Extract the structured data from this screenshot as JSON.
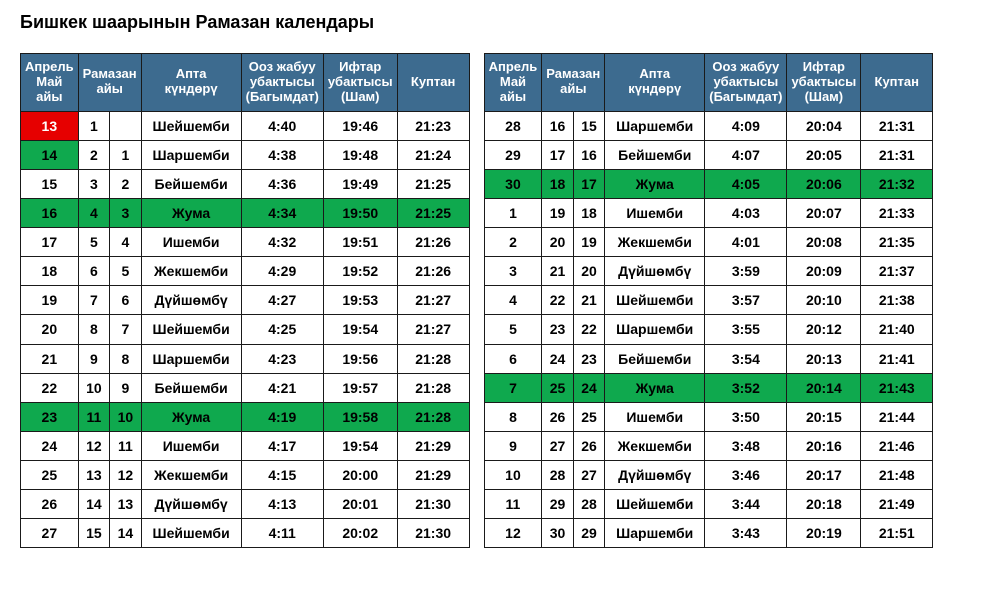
{
  "title": "Бишкек шаарынын Рамазан календары",
  "headers": {
    "date": "Апрель\nМай\nайы",
    "ram": "Рамазан\nайы",
    "weekday": "Апта\nкүндөрү",
    "suhur": "Ооз жабуу\nубактысы\n(Багымдат)",
    "iftar": "Ифтар\nубактысы\n(Шам)",
    "kuptan": "Куптан"
  },
  "colors": {
    "header_bg": "#3d6b8f",
    "header_fg": "#ffffff",
    "border": "#1a1a1a",
    "red": "#e60000",
    "green": "#0fa94e",
    "text": "#000000"
  },
  "left": [
    {
      "date": "13",
      "r1": "1",
      "r2": "",
      "day": "Шейшемби",
      "suhur": "4:40",
      "iftar": "19:46",
      "kuptan": "21:23",
      "style": "red"
    },
    {
      "date": "14",
      "r1": "2",
      "r2": "1",
      "day": "Шаршемби",
      "suhur": "4:38",
      "iftar": "19:48",
      "kuptan": "21:24",
      "style": "green-date"
    },
    {
      "date": "15",
      "r1": "3",
      "r2": "2",
      "day": "Бейшемби",
      "suhur": "4:36",
      "iftar": "19:49",
      "kuptan": "21:25",
      "style": ""
    },
    {
      "date": "16",
      "r1": "4",
      "r2": "3",
      "day": "Жума",
      "suhur": "4:34",
      "iftar": "19:50",
      "kuptan": "21:25",
      "style": "green"
    },
    {
      "date": "17",
      "r1": "5",
      "r2": "4",
      "day": "Ишемби",
      "suhur": "4:32",
      "iftar": "19:51",
      "kuptan": "21:26",
      "style": ""
    },
    {
      "date": "18",
      "r1": "6",
      "r2": "5",
      "day": "Жекшемби",
      "suhur": "4:29",
      "iftar": "19:52",
      "kuptan": "21:26",
      "style": ""
    },
    {
      "date": "19",
      "r1": "7",
      "r2": "6",
      "day": "Дүйшөмбү",
      "suhur": "4:27",
      "iftar": "19:53",
      "kuptan": "21:27",
      "style": ""
    },
    {
      "date": "20",
      "r1": "8",
      "r2": "7",
      "day": "Шейшемби",
      "suhur": "4:25",
      "iftar": "19:54",
      "kuptan": "21:27",
      "style": ""
    },
    {
      "date": "21",
      "r1": "9",
      "r2": "8",
      "day": "Шаршемби",
      "suhur": "4:23",
      "iftar": "19:56",
      "kuptan": "21:28",
      "style": ""
    },
    {
      "date": "22",
      "r1": "10",
      "r2": "9",
      "day": "Бейшемби",
      "suhur": "4:21",
      "iftar": "19:57",
      "kuptan": "21:28",
      "style": ""
    },
    {
      "date": "23",
      "r1": "11",
      "r2": "10",
      "day": "Жума",
      "suhur": "4:19",
      "iftar": "19:58",
      "kuptan": "21:28",
      "style": "green"
    },
    {
      "date": "24",
      "r1": "12",
      "r2": "11",
      "day": "Ишемби",
      "suhur": "4:17",
      "iftar": "19:54",
      "kuptan": "21:29",
      "style": ""
    },
    {
      "date": "25",
      "r1": "13",
      "r2": "12",
      "day": "Жекшемби",
      "suhur": "4:15",
      "iftar": "20:00",
      "kuptan": "21:29",
      "style": ""
    },
    {
      "date": "26",
      "r1": "14",
      "r2": "13",
      "day": "Дүйшөмбү",
      "suhur": "4:13",
      "iftar": "20:01",
      "kuptan": "21:30",
      "style": ""
    },
    {
      "date": "27",
      "r1": "15",
      "r2": "14",
      "day": "Шейшемби",
      "suhur": "4:11",
      "iftar": "20:02",
      "kuptan": "21:30",
      "style": ""
    }
  ],
  "right": [
    {
      "date": "28",
      "r1": "16",
      "r2": "15",
      "day": "Шаршемби",
      "suhur": "4:09",
      "iftar": "20:04",
      "kuptan": "21:31",
      "style": ""
    },
    {
      "date": "29",
      "r1": "17",
      "r2": "16",
      "day": "Бейшемби",
      "suhur": "4:07",
      "iftar": "20:05",
      "kuptan": "21:31",
      "style": ""
    },
    {
      "date": "30",
      "r1": "18",
      "r2": "17",
      "day": "Жума",
      "suhur": "4:05",
      "iftar": "20:06",
      "kuptan": "21:32",
      "style": "green"
    },
    {
      "date": "1",
      "r1": "19",
      "r2": "18",
      "day": "Ишемби",
      "suhur": "4:03",
      "iftar": "20:07",
      "kuptan": "21:33",
      "style": ""
    },
    {
      "date": "2",
      "r1": "20",
      "r2": "19",
      "day": "Жекшемби",
      "suhur": "4:01",
      "iftar": "20:08",
      "kuptan": "21:35",
      "style": ""
    },
    {
      "date": "3",
      "r1": "21",
      "r2": "20",
      "day": "Дүйшөмбү",
      "suhur": "3:59",
      "iftar": "20:09",
      "kuptan": "21:37",
      "style": ""
    },
    {
      "date": "4",
      "r1": "22",
      "r2": "21",
      "day": "Шейшемби",
      "suhur": "3:57",
      "iftar": "20:10",
      "kuptan": "21:38",
      "style": ""
    },
    {
      "date": "5",
      "r1": "23",
      "r2": "22",
      "day": "Шаршемби",
      "suhur": "3:55",
      "iftar": "20:12",
      "kuptan": "21:40",
      "style": ""
    },
    {
      "date": "6",
      "r1": "24",
      "r2": "23",
      "day": "Бейшемби",
      "suhur": "3:54",
      "iftar": "20:13",
      "kuptan": "21:41",
      "style": ""
    },
    {
      "date": "7",
      "r1": "25",
      "r2": "24",
      "day": "Жума",
      "suhur": "3:52",
      "iftar": "20:14",
      "kuptan": "21:43",
      "style": "green"
    },
    {
      "date": "8",
      "r1": "26",
      "r2": "25",
      "day": "Ишемби",
      "suhur": "3:50",
      "iftar": "20:15",
      "kuptan": "21:44",
      "style": ""
    },
    {
      "date": "9",
      "r1": "27",
      "r2": "26",
      "day": "Жекшемби",
      "suhur": "3:48",
      "iftar": "20:16",
      "kuptan": "21:46",
      "style": ""
    },
    {
      "date": "10",
      "r1": "28",
      "r2": "27",
      "day": "Дүйшөмбү",
      "suhur": "3:46",
      "iftar": "20:17",
      "kuptan": "21:48",
      "style": ""
    },
    {
      "date": "11",
      "r1": "29",
      "r2": "28",
      "day": "Шейшемби",
      "suhur": "3:44",
      "iftar": "20:18",
      "kuptan": "21:49",
      "style": ""
    },
    {
      "date": "12",
      "r1": "30",
      "r2": "29",
      "day": "Шаршемби",
      "suhur": "3:43",
      "iftar": "20:19",
      "kuptan": "21:51",
      "style": ""
    }
  ]
}
